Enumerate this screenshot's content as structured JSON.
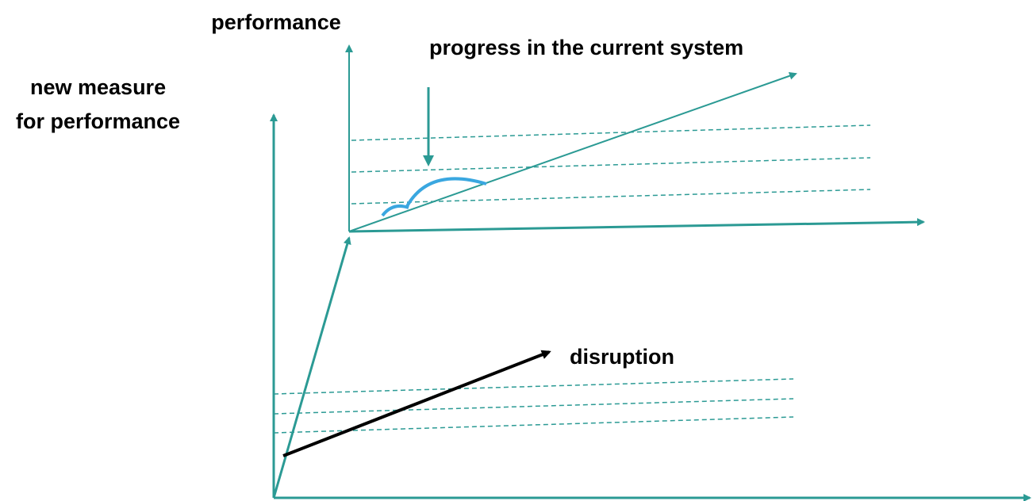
{
  "labels": {
    "performance": "performance",
    "progress": "progress in the current system",
    "new_measure_line1": "new measure",
    "new_measure_line2": "for performance",
    "disruption": "disruption"
  }
}
